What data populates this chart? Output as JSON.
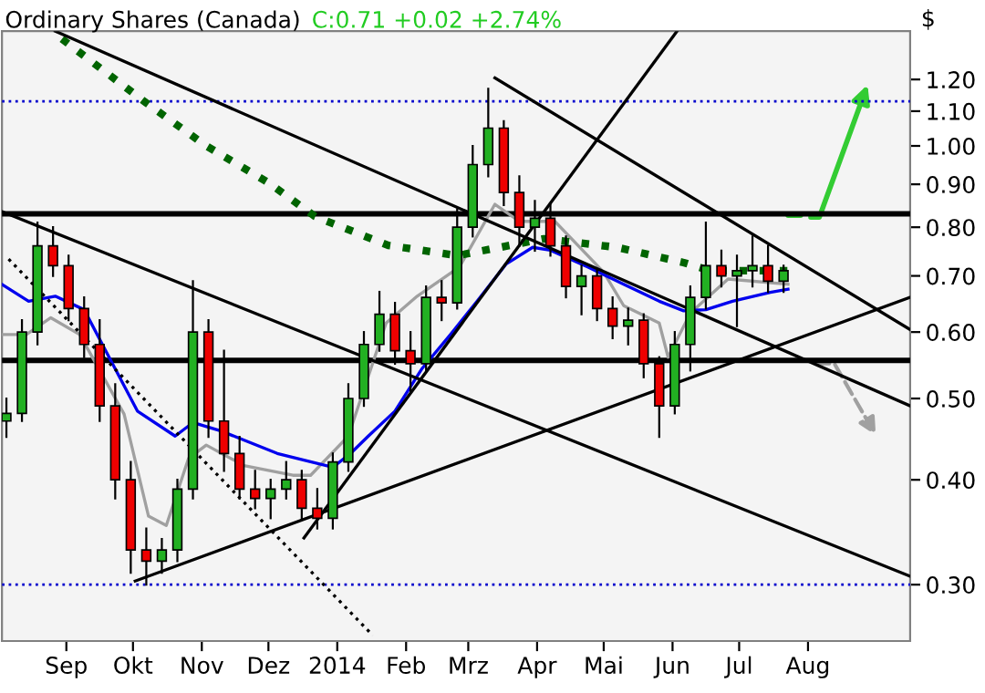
{
  "chart_data": {
    "type": "candlestick",
    "title": "Ordinary Shares (Canada)",
    "subtitle": "C:0.71 +0.02 +2.74%",
    "ylabel": "$",
    "log": true,
    "grid": false,
    "xlim": [
      "2013-08-03",
      "2014-09-16"
    ],
    "xticks": [
      {
        "value": "2013-09-01",
        "label": "Sep"
      },
      {
        "value": "2013-10-01",
        "label": "Okt"
      },
      {
        "value": "2013-11-01",
        "label": "Nov"
      },
      {
        "value": "2013-12-01",
        "label": "Dez"
      },
      {
        "value": "2014-01-01",
        "label": "2014"
      },
      {
        "value": "2014-02-01",
        "label": "Feb"
      },
      {
        "value": "2014-03-01",
        "label": "Mrz"
      },
      {
        "value": "2014-04-01",
        "label": "Apr"
      },
      {
        "value": "2014-05-01",
        "label": "Mai"
      },
      {
        "value": "2014-06-01",
        "label": "Jun"
      },
      {
        "value": "2014-07-01",
        "label": "Jul"
      },
      {
        "value": "2014-08-01",
        "label": "Aug"
      }
    ],
    "ylim": [
      0.257,
      1.37
    ],
    "yticks": [
      {
        "value": 0.3,
        "label": "0.30"
      },
      {
        "value": 0.4,
        "label": "0.40"
      },
      {
        "value": 0.5,
        "label": "0.50"
      },
      {
        "value": 0.6,
        "label": "0.60"
      },
      {
        "value": 0.7,
        "label": "0.70"
      },
      {
        "value": 0.8,
        "label": "0.80"
      },
      {
        "value": 0.9,
        "label": "0.90"
      },
      {
        "value": 1.0,
        "label": "1.00"
      },
      {
        "value": 1.1,
        "label": "1.10"
      },
      {
        "value": 1.2,
        "label": "1.20"
      }
    ],
    "ref_lines": [
      {
        "axis": "y",
        "value": 0.83,
        "color": "#000000",
        "line_style": "solid"
      },
      {
        "axis": "y",
        "value": 0.555,
        "color": "#000000",
        "line_style": "solid"
      },
      {
        "axis": "y",
        "value": 1.13,
        "color": "#0000cc",
        "line_style": "dotted"
      },
      {
        "axis": "y",
        "value": 0.3,
        "color": "#0000cc",
        "line_style": "dotted"
      }
    ],
    "series": [
      {
        "x": [
          "2013-08-05",
          "2013-08-12",
          "2013-08-19",
          "2013-08-26",
          "2013-09-02",
          "2013-09-09",
          "2013-09-16",
          "2013-09-23",
          "2013-09-30",
          "2013-10-07",
          "2013-10-14",
          "2013-10-21",
          "2013-10-28",
          "2013-11-04",
          "2013-11-11",
          "2013-11-18",
          "2013-11-25",
          "2013-12-02",
          "2013-12-09",
          "2013-12-16",
          "2013-12-23",
          "2013-12-30",
          "2014-01-06",
          "2014-01-13",
          "2014-01-20",
          "2014-01-27",
          "2014-02-03",
          "2014-02-10",
          "2014-02-17",
          "2014-02-24",
          "2014-03-03",
          "2014-03-10",
          "2014-03-17",
          "2014-03-24",
          "2014-03-31",
          "2014-04-07",
          "2014-04-14",
          "2014-04-21",
          "2014-04-28",
          "2014-05-05",
          "2014-05-12",
          "2014-05-19",
          "2014-05-26",
          "2014-06-02",
          "2014-06-09",
          "2014-06-16",
          "2014-06-23",
          "2014-06-30",
          "2014-07-07",
          "2014-07-14",
          "2014-07-21"
        ],
        "ohlc": [
          [
            0.47,
            0.5,
            0.45,
            0.48
          ],
          [
            0.48,
            0.62,
            0.47,
            0.6
          ],
          [
            0.6,
            0.81,
            0.58,
            0.76
          ],
          [
            0.76,
            0.8,
            0.7,
            0.72
          ],
          [
            0.72,
            0.74,
            0.62,
            0.64
          ],
          [
            0.64,
            0.66,
            0.56,
            0.58
          ],
          [
            0.58,
            0.62,
            0.47,
            0.49
          ],
          [
            0.49,
            0.52,
            0.38,
            0.4
          ],
          [
            0.4,
            0.42,
            0.31,
            0.33
          ],
          [
            0.33,
            0.35,
            0.3,
            0.32
          ],
          [
            0.32,
            0.34,
            0.31,
            0.33
          ],
          [
            0.33,
            0.4,
            0.32,
            0.39
          ],
          [
            0.39,
            0.69,
            0.38,
            0.6
          ],
          [
            0.6,
            0.62,
            0.45,
            0.47
          ],
          [
            0.47,
            0.57,
            0.41,
            0.43
          ],
          [
            0.43,
            0.45,
            0.38,
            0.39
          ],
          [
            0.39,
            0.41,
            0.37,
            0.38
          ],
          [
            0.38,
            0.4,
            0.36,
            0.39
          ],
          [
            0.39,
            0.42,
            0.38,
            0.4
          ],
          [
            0.4,
            0.41,
            0.36,
            0.37
          ],
          [
            0.37,
            0.39,
            0.35,
            0.36
          ],
          [
            0.36,
            0.43,
            0.35,
            0.42
          ],
          [
            0.42,
            0.52,
            0.41,
            0.5
          ],
          [
            0.5,
            0.6,
            0.49,
            0.58
          ],
          [
            0.58,
            0.67,
            0.57,
            0.63
          ],
          [
            0.63,
            0.65,
            0.55,
            0.57
          ],
          [
            0.57,
            0.6,
            0.51,
            0.55
          ],
          [
            0.55,
            0.68,
            0.54,
            0.66
          ],
          [
            0.66,
            0.69,
            0.62,
            0.65
          ],
          [
            0.65,
            0.84,
            0.64,
            0.8
          ],
          [
            0.8,
            1.0,
            0.78,
            0.95
          ],
          [
            0.95,
            1.17,
            0.92,
            1.05
          ],
          [
            1.05,
            1.07,
            0.85,
            0.88
          ],
          [
            0.88,
            0.92,
            0.76,
            0.8
          ],
          [
            0.8,
            0.86,
            0.75,
            0.82
          ],
          [
            0.82,
            0.85,
            0.74,
            0.76
          ],
          [
            0.76,
            0.78,
            0.66,
            0.68
          ],
          [
            0.68,
            0.72,
            0.63,
            0.7
          ],
          [
            0.7,
            0.71,
            0.62,
            0.64
          ],
          [
            0.64,
            0.66,
            0.59,
            0.61
          ],
          [
            0.61,
            0.64,
            0.58,
            0.62
          ],
          [
            0.62,
            0.63,
            0.53,
            0.55
          ],
          [
            0.55,
            0.56,
            0.45,
            0.49
          ],
          [
            0.49,
            0.6,
            0.48,
            0.58
          ],
          [
            0.58,
            0.68,
            0.54,
            0.66
          ],
          [
            0.66,
            0.81,
            0.64,
            0.72
          ],
          [
            0.72,
            0.75,
            0.68,
            0.7
          ],
          [
            0.7,
            0.74,
            0.61,
            0.71
          ],
          [
            0.71,
            0.78,
            0.68,
            0.72
          ],
          [
            0.72,
            0.76,
            0.67,
            0.69
          ],
          [
            0.69,
            0.72,
            0.67,
            0.71
          ]
        ],
        "colors": [
          "#22b022",
          "#22b022",
          "#22b022",
          "#ee0000",
          "#ee0000",
          "#ee0000",
          "#ee0000",
          "#ee0000",
          "#ee0000",
          "#ee0000",
          "#22b022",
          "#22b022",
          "#22b022",
          "#ee0000",
          "#ee0000",
          "#ee0000",
          "#ee0000",
          "#22b022",
          "#22b022",
          "#ee0000",
          "#ee0000",
          "#22b022",
          "#22b022",
          "#22b022",
          "#22b022",
          "#ee0000",
          "#ee0000",
          "#22b022",
          "#ee0000",
          "#22b022",
          "#22b022",
          "#22b022",
          "#ee0000",
          "#ee0000",
          "#22b022",
          "#ee0000",
          "#ee0000",
          "#22b022",
          "#ee0000",
          "#ee0000",
          "#22b022",
          "#ee0000",
          "#ee0000",
          "#22b022",
          "#22b022",
          "#22b022",
          "#ee0000",
          "#22b022",
          "#22b022",
          "#ee0000",
          "#22b022"
        ]
      },
      {
        "type": "line",
        "color": "#a0a0a0",
        "line_style": "solid",
        "x": [
          "2013-08-03",
          "2013-08-14",
          "2013-08-25",
          "2013-09-07",
          "2013-09-27",
          "2013-10-08",
          "2013-10-16",
          "2013-10-26",
          "2013-11-03",
          "2013-11-20",
          "2013-12-12",
          "2013-12-20",
          "2014-01-06",
          "2014-01-23",
          "2014-02-06",
          "2014-02-25",
          "2014-03-13",
          "2014-03-24",
          "2014-04-09",
          "2014-05-01",
          "2014-05-10",
          "2014-05-26",
          "2014-05-30",
          "2014-06-09",
          "2014-06-26",
          "2014-07-23"
        ],
        "values": [
          0.596,
          0.596,
          0.624,
          0.596,
          0.479,
          0.362,
          0.353,
          0.424,
          0.44,
          0.416,
          0.405,
          0.405,
          0.451,
          0.615,
          0.662,
          0.717,
          0.852,
          0.813,
          0.813,
          0.707,
          0.645,
          0.615,
          0.56,
          0.632,
          0.694,
          0.684
        ]
      },
      {
        "type": "line",
        "color": "#0000ee",
        "line_style": "solid",
        "x": [
          "2013-08-03",
          "2013-08-15",
          "2013-08-27",
          "2013-09-09",
          "2013-09-21",
          "2013-10-03",
          "2013-10-20",
          "2013-10-28",
          "2013-11-10",
          "2013-12-05",
          "2013-12-30",
          "2014-01-07",
          "2014-01-15",
          "2014-01-27",
          "2014-02-08",
          "2014-02-21",
          "2014-03-05",
          "2014-03-18",
          "2014-03-30",
          "2014-04-07",
          "2014-04-24",
          "2014-05-10",
          "2014-05-26",
          "2014-06-06",
          "2014-06-16",
          "2014-06-28",
          "2014-07-15",
          "2014-07-23"
        ],
        "values": [
          0.684,
          0.653,
          0.662,
          0.638,
          0.555,
          0.483,
          0.451,
          0.468,
          0.457,
          0.43,
          0.414,
          0.43,
          0.451,
          0.483,
          0.542,
          0.596,
          0.653,
          0.723,
          0.757,
          0.751,
          0.717,
          0.684,
          0.653,
          0.636,
          0.638,
          0.653,
          0.669,
          0.675
        ]
      },
      {
        "type": "line",
        "color": "#006400",
        "line_style": "dotted",
        "x": [
          "2013-08-30",
          "2013-10-07",
          "2013-11-03",
          "2013-12-01",
          "2013-12-22",
          "2014-01-24",
          "2014-02-24",
          "2014-04-04",
          "2014-05-07",
          "2014-06-06",
          "2014-06-18",
          "2014-07-23"
        ],
        "values": [
          1.341,
          1.125,
          1.0,
          0.904,
          0.824,
          0.761,
          0.74,
          0.775,
          0.757,
          0.726,
          0.71,
          0.71
        ]
      },
      {
        "type": "line",
        "color": "#000000",
        "line_style": "solid",
        "x": [
          "2013-08-03",
          "2014-09-16"
        ],
        "values": [
          0.835,
          0.307
        ]
      },
      {
        "type": "line",
        "color": "#000000",
        "line_style": "solid",
        "x": [
          "2013-08-27",
          "2014-09-16"
        ],
        "values": [
          1.37,
          0.49
        ]
      },
      {
        "type": "line",
        "color": "#000000",
        "line_style": "solid",
        "x": [
          "2014-03-13",
          "2014-09-16"
        ],
        "values": [
          1.205,
          0.604
        ]
      },
      {
        "type": "line",
        "color": "#000000",
        "line_style": "solid",
        "x": [
          "2013-12-17",
          "2014-06-03"
        ],
        "values": [
          0.341,
          1.37
        ]
      },
      {
        "type": "line",
        "color": "#000000",
        "line_style": "solid",
        "x": [
          "2013-10-02",
          "2014-09-16"
        ],
        "values": [
          0.303,
          0.66
        ]
      },
      {
        "type": "line",
        "color": "#000000",
        "line_style": "dotted",
        "x": [
          "2013-08-06",
          "2014-01-17"
        ],
        "values": [
          0.733,
          0.261
        ]
      }
    ]
  }
}
